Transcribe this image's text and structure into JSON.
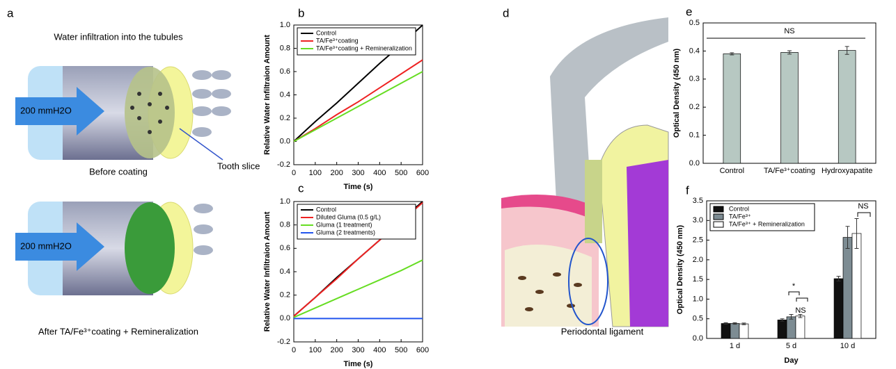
{
  "panel_labels": [
    "a",
    "b",
    "c",
    "d",
    "e",
    "f"
  ],
  "panel_a": {
    "title": "Water infiltration into the tubules",
    "pressure_label_1": "200 mmH2O",
    "caption_1": "Before coating",
    "tooth_slice": "Tooth slice",
    "pressure_label_2": "200 mmH2O",
    "caption_2": "After TA/Fe³⁺coating + Remineralization"
  },
  "panel_d": {
    "label": "Periodontal ligament"
  },
  "chart_data": [
    {
      "type": "line",
      "xlabel": "Time (s)",
      "ylabel": "Relative Water Infiltraion Amount",
      "x": [
        0,
        100,
        200,
        300,
        400,
        500,
        600
      ],
      "series": [
        {
          "name": "Control",
          "color": "#000000",
          "values": [
            0,
            0.17,
            0.33,
            0.5,
            0.67,
            0.83,
            1.0
          ]
        },
        {
          "name": "TA/Fe³⁺coating",
          "color": "#ee2222",
          "values": [
            0,
            0.11,
            0.23,
            0.34,
            0.46,
            0.58,
            0.7
          ]
        },
        {
          "name": "TA/Fe³⁺coating + Remineralization",
          "color": "#66dd22",
          "values": [
            0,
            0.1,
            0.2,
            0.3,
            0.4,
            0.5,
            0.6
          ]
        }
      ],
      "xlim": [
        0,
        600
      ],
      "xticks": [
        0,
        100,
        200,
        300,
        400,
        500,
        600
      ],
      "ylim": [
        -0.2,
        1.0
      ],
      "yticks": [
        -0.2,
        {
          "value": 0,
          "label": "0.0"
        },
        0.2,
        0.4,
        0.6,
        0.8,
        {
          "value": 1,
          "label": "1.0"
        }
      ],
      "legend": "upper left"
    },
    {
      "type": "line",
      "xlabel": "Time (s)",
      "ylabel": "Relative Water Infiltraion Amount",
      "x": [
        0,
        100,
        200,
        300,
        400,
        500,
        600
      ],
      "series": [
        {
          "name": "Control",
          "color": "#000000",
          "values": [
            0.02,
            0.18,
            0.35,
            0.51,
            0.67,
            0.84,
            1.0
          ]
        },
        {
          "name": "Diluted Gluma (0.5 g/L)",
          "color": "#ee2222",
          "values": [
            0.02,
            0.18,
            0.34,
            0.51,
            0.67,
            0.83,
            0.99
          ]
        },
        {
          "name": "Gluma (1 treatment)",
          "color": "#66dd22",
          "values": [
            0.01,
            0.09,
            0.17,
            0.25,
            0.33,
            0.41,
            0.5
          ]
        },
        {
          "name": "Gluma (2 treatments)",
          "color": "#2255ee",
          "values": [
            0,
            0,
            0,
            0,
            0,
            0,
            0
          ]
        }
      ],
      "xlim": [
        0,
        600
      ],
      "xticks": [
        0,
        100,
        200,
        300,
        400,
        500,
        600
      ],
      "ylim": [
        -0.2,
        1.0
      ],
      "yticks": [
        -0.2,
        {
          "value": 0,
          "label": "0.0"
        },
        0.2,
        0.4,
        0.6,
        0.8,
        {
          "value": 1,
          "label": "1.0"
        }
      ],
      "legend": "upper left"
    },
    {
      "type": "bar",
      "ylabel": "Optical Density (450 nm)",
      "categories": [
        "Control",
        "TA/Fe³⁺coating",
        "Hydroxyapatite"
      ],
      "series": [
        {
          "color": "#b7c8c2",
          "values": [
            0.39,
            0.395,
            0.402
          ],
          "errors": [
            0.004,
            0.006,
            0.014
          ]
        }
      ],
      "ylim": [
        0,
        0.5
      ],
      "yticks": [
        {
          "value": 0,
          "label": "0.0"
        },
        0.1,
        0.2,
        0.3,
        0.4,
        0.5
      ],
      "annotations": [
        "NS"
      ]
    },
    {
      "type": "bar",
      "xlabel": "Day",
      "ylabel": "Optical Density (450 nm)",
      "categories": [
        "1 d",
        "5 d",
        "10 d"
      ],
      "series": [
        {
          "name": "Control",
          "color": "#111111",
          "values": [
            0.38,
            0.47,
            1.52
          ],
          "errors": [
            0.02,
            0.03,
            0.06
          ]
        },
        {
          "name": "TA/Fe³⁺",
          "color": "#7d8c93",
          "values": [
            0.38,
            0.55,
            2.57
          ],
          "errors": [
            0.02,
            0.06,
            0.28
          ]
        },
        {
          "name": "TA/Fe³⁺ + Remineralization",
          "color": "#ffffff",
          "values": [
            0.37,
            0.57,
            2.67
          ],
          "errors": [
            0.02,
            0.04,
            0.38
          ]
        }
      ],
      "ylim": [
        0,
        3.5
      ],
      "yticks": [
        {
          "value": 0,
          "label": "0.0"
        },
        0.5,
        {
          "value": 1,
          "label": "1.0"
        },
        1.5,
        {
          "value": 2,
          "label": "2.0"
        },
        2.5,
        {
          "value": 3,
          "label": "3.0"
        },
        3.5
      ],
      "legend": "upper left",
      "annotations": [
        "*",
        "NS",
        "NS"
      ]
    }
  ]
}
